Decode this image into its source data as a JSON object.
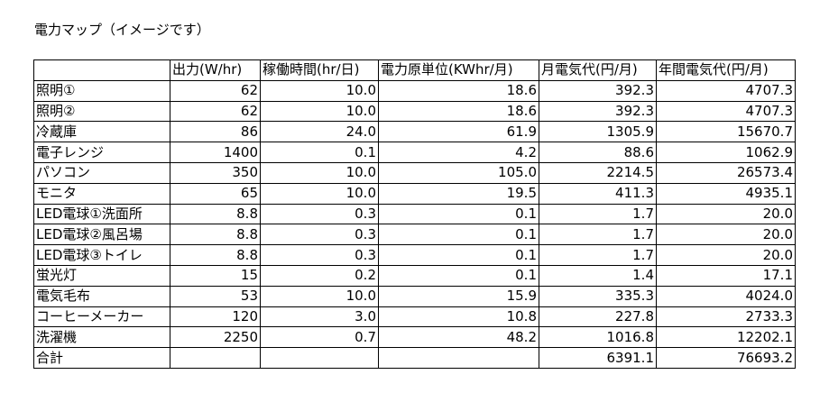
{
  "title": "電力マップ（イメージです）",
  "table": {
    "header": [
      "出力(W/hr)",
      "稼働時間(hr/日)",
      "電力原単位(KWhr/月)",
      "月電気代(円/月)",
      "年間電気代(円/月)"
    ],
    "rows": [
      [
        "照明①",
        "62",
        "10.0",
        "18.6",
        "392.3",
        "4707.3"
      ],
      [
        "照明②",
        "62",
        "10.0",
        "18.6",
        "392.3",
        "4707.3"
      ],
      [
        "冷蔵庫",
        "86",
        "24.0",
        "61.9",
        "1305.9",
        "15670.7"
      ],
      [
        "電子レンジ",
        "1400",
        "0.1",
        "4.2",
        "88.6",
        "1062.9"
      ],
      [
        "パソコン",
        "350",
        "10.0",
        "105.0",
        "2214.5",
        "26573.4"
      ],
      [
        "モニタ",
        "65",
        "10.0",
        "19.5",
        "411.3",
        "4935.1"
      ],
      [
        "LED電球①洗面所",
        "8.8",
        "0.3",
        "0.1",
        "1.7",
        "20.0"
      ],
      [
        "LED電球②風呂場",
        "8.8",
        "0.3",
        "0.1",
        "1.7",
        "20.0"
      ],
      [
        "LED電球③トイレ",
        "8.8",
        "0.3",
        "0.1",
        "1.7",
        "20.0"
      ],
      [
        "蛍光灯",
        "15",
        "0.2",
        "0.1",
        "1.4",
        "17.1"
      ],
      [
        "電気毛布",
        "53",
        "10.0",
        "15.9",
        "335.3",
        "4024.0"
      ],
      [
        "コーヒーメーカー",
        "120",
        "3.0",
        "10.8",
        "227.8",
        "2733.3"
      ],
      [
        "洗濯機",
        "2250",
        "0.7",
        "48.2",
        "1016.8",
        "12202.1"
      ]
    ],
    "total": {
      "label": "合計",
      "monthly_cost": "6391.1",
      "annual_cost": "76693.2"
    }
  }
}
